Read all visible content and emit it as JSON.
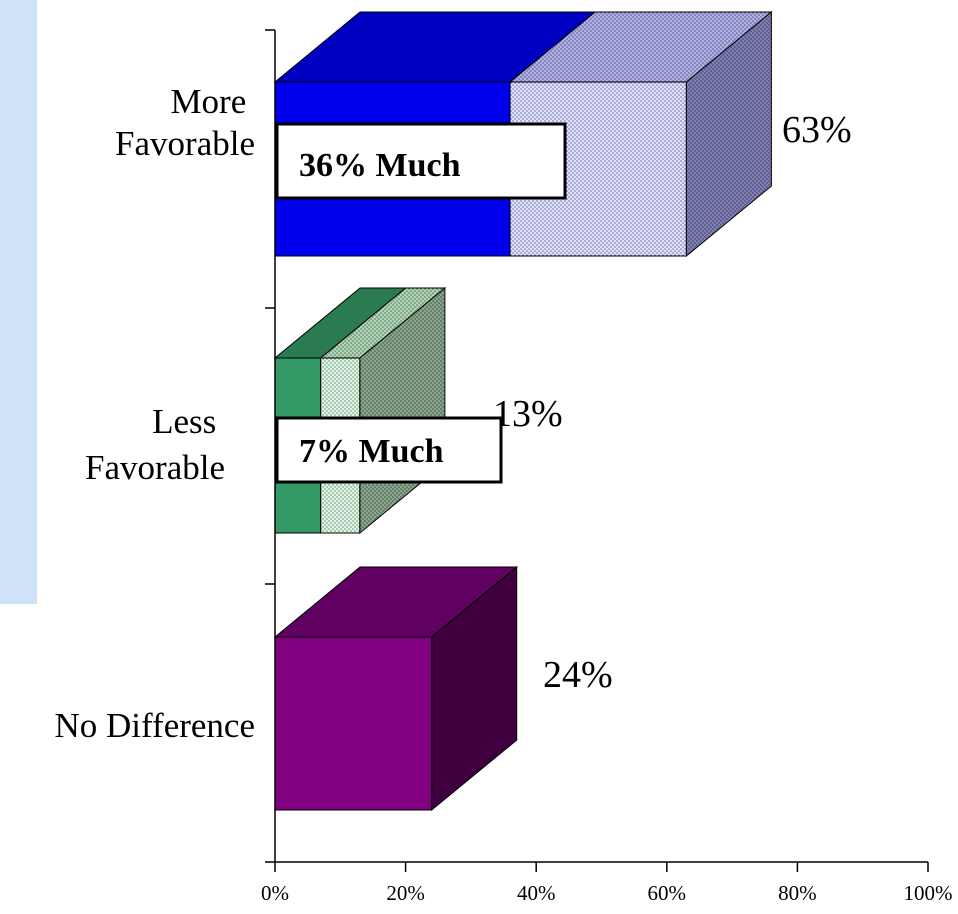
{
  "chart_data": {
    "type": "bar",
    "orientation": "horizontal",
    "style": "3d-stacked",
    "categories": [
      "More\nFavorable",
      "Less\nFavorable",
      "No Difference"
    ],
    "series": [
      {
        "values": [
          36,
          7,
          24
        ]
      },
      {
        "values": [
          27,
          6,
          0
        ]
      }
    ],
    "totals": [
      "63%",
      "13%",
      "24%"
    ],
    "much_labels": [
      "36% Much",
      "7% Much",
      ""
    ],
    "xlim": [
      0,
      100
    ],
    "x_ticks": [
      "0%",
      "20%",
      "40%",
      "60%",
      "80%",
      "100%"
    ],
    "grid": false,
    "colors": {
      "more_solid": "#0000ee",
      "more_solid_top": "#0000c0",
      "more_dotted": "#d8d8f4",
      "more_dotted_top": "#9c9cd4",
      "more_side": "#6a6a9e",
      "less_solid": "#339966",
      "less_solid_top": "#2a7a52",
      "less_dotted": "#d9ecdf",
      "less_dotted_top": "#9bc09f",
      "less_side": "#6a8a6e",
      "none_solid": "#800080",
      "none_top": "#600060",
      "none_side": "#400040"
    }
  }
}
